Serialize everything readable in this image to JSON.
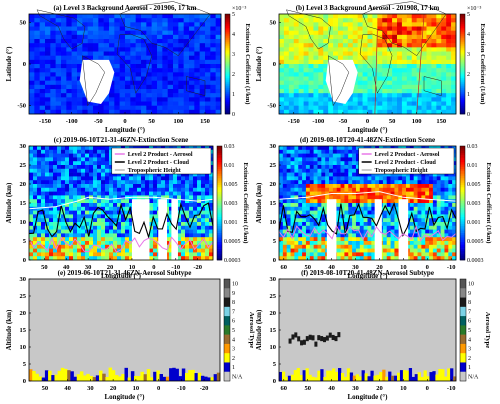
{
  "chart_data": [
    {
      "panel": "a",
      "type": "heatmap",
      "title": "(a) Level 3 Background Aerosol - 201906, 17 km",
      "xlabel": "Longitude (°)",
      "ylabel": "Latitude (°)",
      "xlim": [
        -180,
        180
      ],
      "ylim": [
        -60,
        60
      ],
      "xticks": [
        "-150",
        "-100",
        "-50",
        "0",
        "50",
        "100",
        "150"
      ],
      "yticks": [
        "50",
        "0",
        "-50"
      ],
      "colorbar": {
        "label": "Extinction Coefficient (1/km)",
        "ticks": [
          "0",
          "1",
          "2",
          "3",
          "4",
          "5"
        ],
        "exponent": "×10⁻³",
        "range": [
          0,
          0.005
        ]
      },
      "colormap": "jet",
      "typical_value": 0.0008
    },
    {
      "panel": "b",
      "type": "heatmap",
      "title": "(b) Level 3 Background Aerosol - 201908, 17 km",
      "xlabel": "Longitude (°)",
      "ylabel": "Latitude (°)",
      "xlim": [
        -180,
        180
      ],
      "ylim": [
        -60,
        60
      ],
      "xticks": [
        "-150",
        "-100",
        "-50",
        "0",
        "50",
        "100",
        "150"
      ],
      "yticks": [
        "50",
        "0",
        "-50"
      ],
      "colorbar": {
        "label": "Extinction Coefficient (1/km)",
        "ticks": [
          "0",
          "1",
          "2",
          "3",
          "4",
          "5"
        ],
        "exponent": "×10⁻³",
        "range": [
          0,
          0.005
        ]
      },
      "colormap": "jet",
      "typical_value": 0.0022,
      "enhanced_region": "northern mid-latitudes, 40–180°E"
    },
    {
      "panel": "c",
      "type": "heatmap",
      "title": "(c) 2019-06-10T21-31-46ZN-Extinction Scene",
      "xlabel": "Longitude (°)",
      "ylabel": "Altitude (km)",
      "xlim": [
        57,
        -27
      ],
      "ylim": [
        0,
        30
      ],
      "xticks": [
        "50",
        "40",
        "30",
        "20",
        "10",
        "0",
        "-10",
        "-20"
      ],
      "yticks": [
        "0",
        "5",
        "10",
        "15",
        "20",
        "25",
        "30"
      ],
      "legend": [
        "Level 2 Product - Aerosol",
        "Level 2 Product - Cloud",
        "Tropospheric Height"
      ],
      "legend_colors": [
        "#e879e8",
        "#000000",
        "#ffffff"
      ],
      "colorbar": {
        "label": "Extinction Coefficient (1/km)",
        "ticks": [
          "0.03",
          "0.01",
          "0.005",
          "0.003",
          "0.001",
          "0.0005",
          "0.0003"
        ],
        "scale": "log"
      },
      "tropopause_km": [
        {
          "x": 57,
          "y": 13.5
        },
        {
          "x": 45,
          "y": 14
        },
        {
          "x": 35,
          "y": 15.5
        },
        {
          "x": 30,
          "y": 16.5
        },
        {
          "x": 20,
          "y": 16
        },
        {
          "x": 10,
          "y": 16.5
        },
        {
          "x": 0,
          "y": 16.5
        },
        {
          "x": -10,
          "y": 16
        },
        {
          "x": -20,
          "y": 15.5
        },
        {
          "x": -27,
          "y": 16
        }
      ]
    },
    {
      "panel": "d",
      "type": "heatmap",
      "title": "(d) 2019-08-10T20-41-48ZN-Extinction Scene",
      "xlabel": "Longitude (°)",
      "ylabel": "Altitude (km)",
      "xlim": [
        62,
        -12
      ],
      "ylim": [
        0,
        30
      ],
      "xticks": [
        "60",
        "50",
        "40",
        "30",
        "20",
        "10",
        "0",
        "-10"
      ],
      "yticks": [
        "0",
        "5",
        "10",
        "15",
        "20",
        "25",
        "30"
      ],
      "legend": [
        "Level 2 Product - Aerosol",
        "Level 2 Product - Cloud",
        "Tropospheric Height"
      ],
      "legend_colors": [
        "#e879e8",
        "#000000",
        "#ffffff"
      ],
      "colorbar": {
        "label": "Extinction Coefficient (1/km)",
        "ticks": [
          "0.03",
          "0.01",
          "0.005",
          "0.003",
          "0.001",
          "0.0005",
          "0.0003"
        ],
        "scale": "log"
      },
      "tropopause_km": [
        {
          "x": 62,
          "y": 16
        },
        {
          "x": 50,
          "y": 16.5
        },
        {
          "x": 40,
          "y": 17.5
        },
        {
          "x": 30,
          "y": 17.5
        },
        {
          "x": 20,
          "y": 18
        },
        {
          "x": 10,
          "y": 16.5
        },
        {
          "x": 0,
          "y": 16
        },
        {
          "x": -12,
          "y": 15.5
        }
      ]
    },
    {
      "panel": "e",
      "type": "heatmap",
      "title": "(e) 2019-06-10T21-31-46ZN-Aerosol Subtype",
      "xlabel": "Longitude (°)",
      "ylabel": "Altitude (km)",
      "xlim": [
        57,
        -27
      ],
      "ylim": [
        0,
        30
      ],
      "xticks": [
        "50",
        "40",
        "30",
        "20",
        "10",
        "0",
        "-10",
        "-20"
      ],
      "yticks": [
        "0",
        "5",
        "10",
        "15",
        "20",
        "25",
        "30"
      ],
      "colorbar": {
        "label": "Aerosol Type",
        "ticks": [
          "10",
          "9",
          "8",
          "7",
          "6",
          "5",
          "4",
          "3",
          "2",
          "1",
          "N/A"
        ],
        "categorical": true
      }
    },
    {
      "panel": "f",
      "type": "heatmap",
      "title": "(f) 2019-08-10T20-41-48ZN-Aerosol Subtype",
      "xlabel": "Longitude (°)",
      "ylabel": "Altitude (km)",
      "xlim": [
        62,
        -12
      ],
      "ylim": [
        0,
        30
      ],
      "xticks": [
        "60",
        "50",
        "40",
        "30",
        "20",
        "10",
        "0",
        "-10"
      ],
      "yticks": [
        "0",
        "5",
        "10",
        "15",
        "20",
        "25",
        "30"
      ],
      "colorbar": {
        "label": "Aerosol Type",
        "ticks": [
          "10",
          "9",
          "8",
          "7",
          "6",
          "5",
          "4",
          "3",
          "2",
          "1",
          "N/A"
        ],
        "categorical": true
      },
      "smoke_layer_km": [
        10,
        15
      ]
    }
  ],
  "aerosol_type_colors": [
    "#c8c8c8",
    "#0000cc",
    "#ffff00",
    "#ff9900",
    "#9a6b2f",
    "#2a7a2a",
    "#006060",
    "#7ad2e6",
    "#1a1a1a",
    "#888888",
    "#555555"
  ]
}
